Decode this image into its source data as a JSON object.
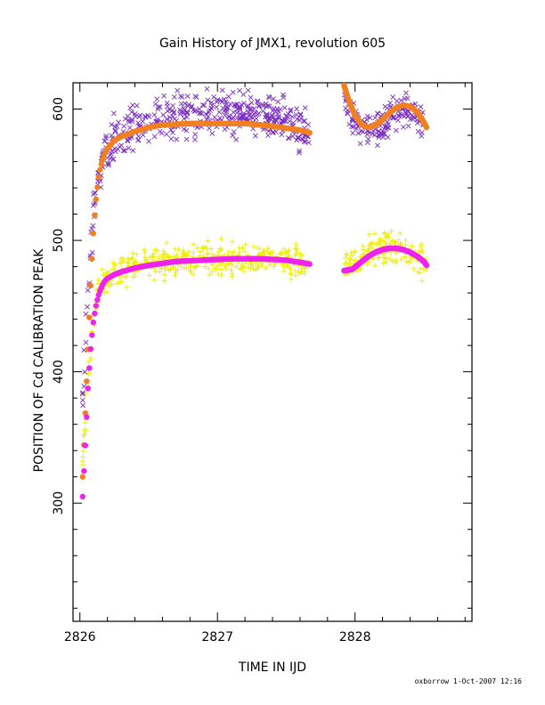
{
  "chart_data": {
    "type": "scatter",
    "title": "Gain History of JMX1, revolution 605",
    "xlabel": "TIME IN IJD",
    "ylabel": "POSITION OF Cd CALIBRATION PEAK",
    "xlim": [
      2825.95,
      2828.85
    ],
    "ylim": [
      210,
      620
    ],
    "xticks": [
      2826,
      2827,
      2828
    ],
    "yticks": [
      300,
      400,
      500,
      600
    ],
    "xminor": [
      2826.2,
      2826.4,
      2826.6,
      2826.8,
      2827.2,
      2827.4,
      2827.6,
      2827.8,
      2828.2,
      2828.4,
      2828.6,
      2828.8
    ],
    "yminor": [
      220,
      240,
      260,
      280,
      320,
      340,
      360,
      380,
      420,
      440,
      460,
      480,
      520,
      540,
      560,
      580
    ],
    "grid": false,
    "series": [
      {
        "marker": "x",
        "color": "#7b2fbf",
        "segments": [
          {
            "x": [
              2826.02,
              2826.05,
              2826.08,
              2826.11,
              2826.14,
              2826.17,
              2826.22,
              2826.3,
              2826.4,
              2826.5,
              2826.6,
              2826.7,
              2826.8,
              2826.9,
              2827.0,
              2827.1,
              2827.2,
              2827.3,
              2827.4,
              2827.5,
              2827.6,
              2827.67
            ],
            "y": [
              385,
              440,
              495,
              530,
              555,
              568,
              575,
              580,
              585,
              590,
              592,
              595,
              595,
              597,
              597,
              596,
              596,
              594,
              593,
              590,
              585,
              582
            ],
            "spread": 22
          },
          {
            "x": [
              2827.92,
              2827.98,
              2828.05,
              2828.12,
              2828.2,
              2828.28,
              2828.35,
              2828.42,
              2828.5
            ],
            "y": [
              605,
              595,
              585,
              582,
              588,
              595,
              600,
              598,
              590
            ],
            "spread": 18
          }
        ]
      },
      {
        "marker": "+",
        "color": "#eeee00",
        "segments": [
          {
            "x": [
              2826.02,
              2826.05,
              2826.08,
              2826.11,
              2826.14,
              2826.18,
              2826.25,
              2826.35,
              2826.5,
              2826.7,
              2826.9,
              2827.1,
              2827.3,
              2827.5,
              2827.67
            ],
            "y": [
              330,
              380,
              420,
              445,
              462,
              470,
              476,
              479,
              482,
              484,
              486,
              486,
              486,
              485,
              482
            ],
            "spread": 16
          },
          {
            "x": [
              2827.92,
              2828.0,
              2828.1,
              2828.2,
              2828.3,
              2828.4,
              2828.52
            ],
            "y": [
              480,
              485,
              490,
              494,
              495,
              492,
              482
            ],
            "spread": 16
          }
        ]
      },
      {
        "marker": "line",
        "color": "#f08020",
        "segments": [
          {
            "x": [
              2826.02,
              2826.04,
              2826.06,
              2826.08,
              2826.1,
              2826.12,
              2826.14,
              2826.16,
              2826.18,
              2826.2,
              2826.25,
              2826.3,
              2826.4,
              2826.5,
              2826.6,
              2826.8,
              2827.0,
              2827.2,
              2827.4,
              2827.6,
              2827.67
            ],
            "y": [
              320,
              370,
              420,
              470,
              510,
              535,
              551,
              560,
              566,
              570,
              576,
              579,
              583,
              586,
              588,
              589,
              589,
              589,
              587,
              584,
              582
            ]
          },
          {
            "x": [
              2827.92,
              2827.95,
              2828.0,
              2828.05,
              2828.1,
              2828.15,
              2828.2,
              2828.25,
              2828.3,
              2828.35,
              2828.4,
              2828.45,
              2828.5,
              2828.52
            ],
            "y": [
              618,
              608,
              595,
              588,
              586,
              588,
              592,
              597,
              601,
              603,
              602,
              598,
              590,
              586
            ]
          }
        ]
      },
      {
        "marker": "line",
        "color": "#ee22ee",
        "segments": [
          {
            "x": [
              2826.02,
              2826.04,
              2826.06,
              2826.08,
              2826.1,
              2826.12,
              2826.14,
              2826.16,
              2826.18,
              2826.2,
              2826.25,
              2826.3,
              2826.4,
              2826.5,
              2826.7,
              2826.9,
              2827.1,
              2827.3,
              2827.5,
              2827.67
            ],
            "y": [
              305,
              345,
              390,
              420,
              440,
              452,
              460,
              465,
              469,
              471,
              474,
              476,
              479,
              481,
              484,
              485,
              486,
              486,
              485,
              482
            ]
          },
          {
            "x": [
              2827.92,
              2827.98,
              2828.05,
              2828.1,
              2828.15,
              2828.2,
              2828.25,
              2828.3,
              2828.35,
              2828.4,
              2828.45,
              2828.5,
              2828.52
            ],
            "y": [
              477,
              478,
              484,
              488,
              491,
              493,
              494,
              494,
              493,
              491,
              488,
              484,
              481
            ]
          }
        ]
      }
    ]
  },
  "footer": "oxborrow   1-Oct-2007 12:16"
}
